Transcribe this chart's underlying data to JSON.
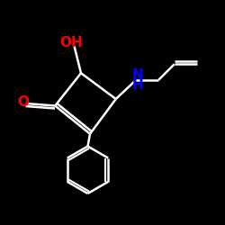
{
  "background": "#000000",
  "bond_color": "#ffffff",
  "O_color": "#ff0000",
  "N_color": "#0000ff",
  "bond_width": 1.8,
  "figsize": [
    2.5,
    2.5
  ],
  "dpi": 100,
  "xlim": [
    0,
    10
  ],
  "ylim": [
    0,
    10
  ],
  "OH_text": "OH",
  "O_text": "O",
  "NH_text": "NH",
  "label_fontsize": 11
}
